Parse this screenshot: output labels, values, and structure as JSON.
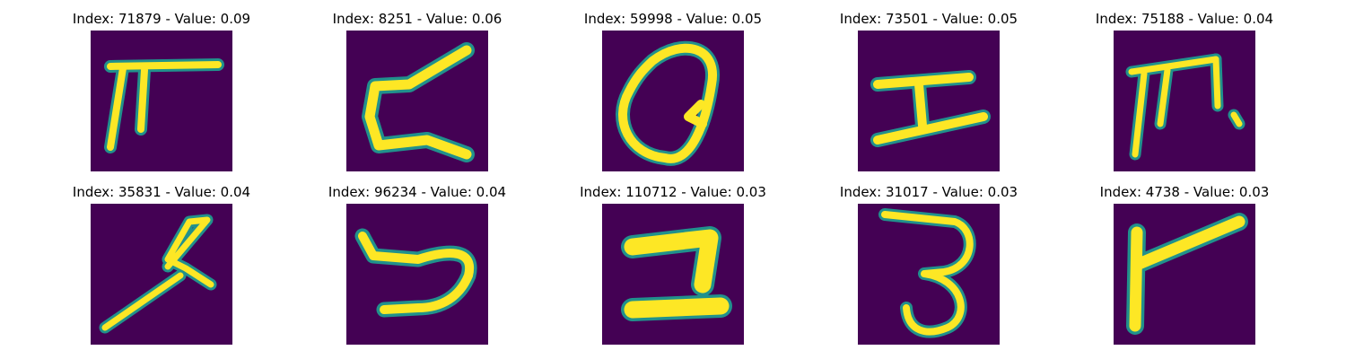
{
  "colors": {
    "background": "#440154",
    "stroke_edge": "#21918c",
    "stroke_mid": "#5ec962",
    "stroke_core": "#fde725"
  },
  "panels": [
    {
      "title": "Index: 71879 - Value: 0.09",
      "glyph": "pi-t"
    },
    {
      "title": "Index: 8251 - Value: 0.06",
      "glyph": "zigzag"
    },
    {
      "title": "Index: 59998 - Value: 0.05",
      "glyph": "loop"
    },
    {
      "title": "Index: 73501 - Value: 0.05",
      "glyph": "i-beam"
    },
    {
      "title": "Index: 75188 - Value: 0.04",
      "glyph": "pi-dot"
    },
    {
      "title": "Index: 35831 - Value: 0.04",
      "glyph": "stalk-loop"
    },
    {
      "title": "Index: 96234 - Value: 0.04",
      "glyph": "curl"
    },
    {
      "title": "Index: 110712 - Value: 0.03",
      "glyph": "bold-z"
    },
    {
      "title": "Index: 31017 - Value: 0.03",
      "glyph": "three"
    },
    {
      "title": "Index: 4738 - Value: 0.03",
      "glyph": "flag"
    }
  ]
}
